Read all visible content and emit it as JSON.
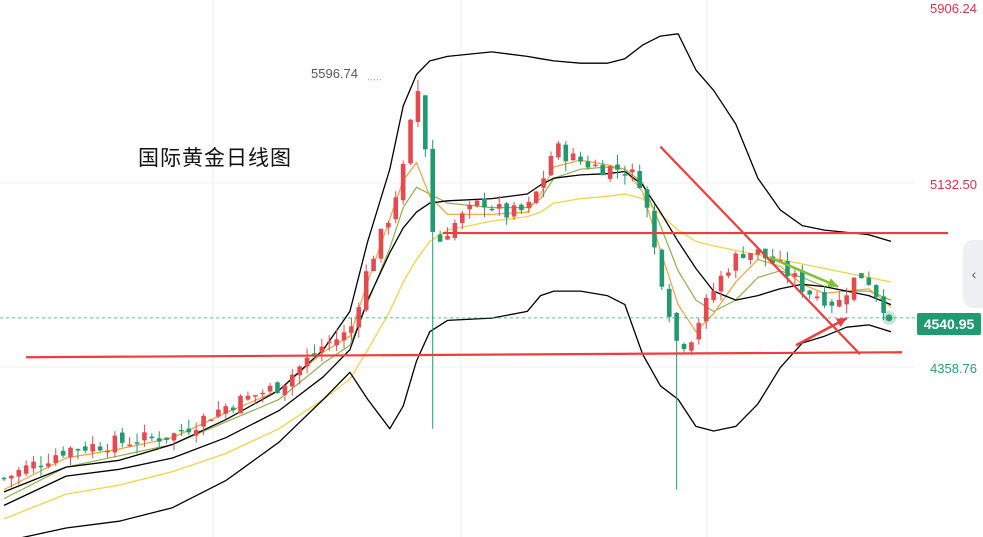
{
  "title": "国际黄金日线图",
  "colors": {
    "up": "#e44a4f",
    "down": "#1f9b6f",
    "band": "#000000",
    "ma_short": "#f2a23a",
    "ma_mid": "#8fb04a",
    "ma_long": "#f3d34a",
    "trend": "#f03c3c",
    "arrow_green": "#7fc133",
    "price_line": "#2b9c72"
  },
  "price_tag": "4540.95",
  "high_marker": "5596.74",
  "y_labels": [
    {
      "text": "5906.24",
      "value": 5906.24,
      "color": "red"
    },
    {
      "text": "5132.50",
      "value": 5132.5,
      "color": "red"
    },
    {
      "text": "4358.76",
      "value": 4358.76,
      "color": "green"
    }
  ],
  "side_button_icon": "chevron-left-icon",
  "chart_data": {
    "type": "candlestick",
    "title": "国际黄金日线图",
    "y_range": [
      3570,
      5950
    ],
    "current_price": 4540.95,
    "period_high": 5596.74,
    "grid": true,
    "candle_count": 120,
    "close_path": [
      [
        0,
        3830
      ],
      [
        14,
        3960
      ],
      [
        26,
        3990
      ],
      [
        38,
        4020
      ],
      [
        50,
        4150
      ],
      [
        62,
        4240
      ],
      [
        72,
        4420
      ],
      [
        78,
        4480
      ],
      [
        82,
        4760
      ],
      [
        87,
        5000
      ],
      [
        90,
        5200
      ],
      [
        92,
        5430
      ],
      [
        93,
        5596.74
      ],
      [
        95,
        5300
      ],
      [
        97,
        4850
      ],
      [
        100,
        4930
      ],
      [
        104,
        5000
      ],
      [
        108,
        5060
      ],
      [
        113,
        5000
      ],
      [
        118,
        5020
      ],
      [
        121,
        5130
      ],
      [
        124,
        5300
      ],
      [
        128,
        5250
      ],
      [
        134,
        5210
      ],
      [
        140,
        5200
      ],
      [
        144,
        5140
      ],
      [
        146,
        4900
      ],
      [
        149,
        4660
      ],
      [
        152,
        4410
      ],
      [
        155,
        4460
      ],
      [
        158,
        4590
      ],
      [
        161,
        4700
      ],
      [
        164,
        4790
      ],
      [
        167,
        4840
      ],
      [
        170,
        4830
      ],
      [
        174,
        4780
      ],
      [
        178,
        4720
      ],
      [
        181,
        4660
      ],
      [
        184,
        4640
      ],
      [
        188,
        4600
      ],
      [
        191,
        4700
      ],
      [
        194,
        4740
      ],
      [
        197,
        4640
      ],
      [
        200,
        4540.95
      ]
    ],
    "upper_band": [
      [
        0,
        3770
      ],
      [
        14,
        3880
      ],
      [
        26,
        3910
      ],
      [
        38,
        3980
      ],
      [
        50,
        4090
      ],
      [
        62,
        4220
      ],
      [
        72,
        4400
      ],
      [
        78,
        4570
      ],
      [
        82,
        4880
      ],
      [
        87,
        5200
      ],
      [
        90,
        5480
      ],
      [
        93,
        5620
      ],
      [
        96,
        5680
      ],
      [
        100,
        5700
      ],
      [
        110,
        5720
      ],
      [
        118,
        5700
      ],
      [
        121,
        5690
      ],
      [
        124,
        5680
      ],
      [
        130,
        5670
      ],
      [
        136,
        5670
      ],
      [
        140,
        5690
      ],
      [
        144,
        5750
      ],
      [
        148,
        5790
      ],
      [
        152,
        5800
      ],
      [
        156,
        5640
      ],
      [
        160,
        5550
      ],
      [
        165,
        5400
      ],
      [
        170,
        5160
      ],
      [
        175,
        5020
      ],
      [
        180,
        4950
      ],
      [
        185,
        4930
      ],
      [
        190,
        4920
      ],
      [
        195,
        4910
      ],
      [
        200,
        4880
      ]
    ],
    "middle_band": [
      [
        0,
        3710
      ],
      [
        14,
        3840
      ],
      [
        26,
        3870
      ],
      [
        38,
        3920
      ],
      [
        50,
        4010
      ],
      [
        62,
        4130
      ],
      [
        72,
        4280
      ],
      [
        78,
        4400
      ],
      [
        82,
        4620
      ],
      [
        87,
        4830
      ],
      [
        90,
        4940
      ],
      [
        93,
        5010
      ],
      [
        96,
        5050
      ],
      [
        100,
        5060
      ],
      [
        110,
        5070
      ],
      [
        118,
        5090
      ],
      [
        121,
        5130
      ],
      [
        124,
        5160
      ],
      [
        130,
        5175
      ],
      [
        136,
        5180
      ],
      [
        140,
        5190
      ],
      [
        144,
        5130
      ],
      [
        148,
        5010
      ],
      [
        152,
        4880
      ],
      [
        156,
        4760
      ],
      [
        160,
        4660
      ],
      [
        165,
        4620
      ],
      [
        170,
        4640
      ],
      [
        175,
        4670
      ],
      [
        180,
        4690
      ],
      [
        185,
        4680
      ],
      [
        190,
        4660
      ],
      [
        195,
        4640
      ],
      [
        200,
        4600
      ]
    ],
    "lower_band": [
      [
        0,
        3550
      ],
      [
        14,
        3610
      ],
      [
        26,
        3640
      ],
      [
        38,
        3700
      ],
      [
        50,
        3820
      ],
      [
        62,
        3990
      ],
      [
        72,
        4180
      ],
      [
        78,
        4300
      ],
      [
        82,
        4180
      ],
      [
        87,
        4050
      ],
      [
        90,
        4150
      ],
      [
        93,
        4350
      ],
      [
        96,
        4480
      ],
      [
        100,
        4530
      ],
      [
        110,
        4540
      ],
      [
        118,
        4570
      ],
      [
        121,
        4640
      ],
      [
        124,
        4660
      ],
      [
        130,
        4660
      ],
      [
        136,
        4640
      ],
      [
        140,
        4600
      ],
      [
        144,
        4380
      ],
      [
        148,
        4240
      ],
      [
        152,
        4180
      ],
      [
        156,
        4060
      ],
      [
        160,
        4040
      ],
      [
        165,
        4060
      ],
      [
        170,
        4160
      ],
      [
        175,
        4320
      ],
      [
        180,
        4430
      ],
      [
        185,
        4460
      ],
      [
        190,
        4500
      ],
      [
        195,
        4510
      ],
      [
        200,
        4480
      ]
    ],
    "ma_short": [
      [
        0,
        3780
      ],
      [
        14,
        3920
      ],
      [
        26,
        3960
      ],
      [
        38,
        4010
      ],
      [
        50,
        4120
      ],
      [
        62,
        4220
      ],
      [
        72,
        4390
      ],
      [
        78,
        4460
      ],
      [
        82,
        4700
      ],
      [
        87,
        4980
      ],
      [
        90,
        5150
      ],
      [
        93,
        5230
      ],
      [
        96,
        5080
      ],
      [
        100,
        5000
      ],
      [
        110,
        5000
      ],
      [
        118,
        5010
      ],
      [
        121,
        5090
      ],
      [
        124,
        5210
      ],
      [
        130,
        5240
      ],
      [
        136,
        5220
      ],
      [
        140,
        5200
      ],
      [
        144,
        5100
      ],
      [
        148,
        4840
      ],
      [
        152,
        4600
      ],
      [
        156,
        4480
      ],
      [
        160,
        4560
      ],
      [
        165,
        4700
      ],
      [
        170,
        4800
      ],
      [
        175,
        4770
      ],
      [
        180,
        4690
      ],
      [
        185,
        4650
      ],
      [
        190,
        4660
      ],
      [
        195,
        4670
      ],
      [
        200,
        4590
      ]
    ],
    "ma_mid": [
      [
        0,
        3740
      ],
      [
        14,
        3880
      ],
      [
        26,
        3930
      ],
      [
        38,
        3980
      ],
      [
        50,
        4080
      ],
      [
        62,
        4180
      ],
      [
        72,
        4340
      ],
      [
        78,
        4420
      ],
      [
        82,
        4610
      ],
      [
        87,
        4850
      ],
      [
        90,
        5030
      ],
      [
        93,
        5120
      ],
      [
        96,
        5090
      ],
      [
        100,
        5050
      ],
      [
        110,
        5030
      ],
      [
        118,
        5030
      ],
      [
        121,
        5070
      ],
      [
        124,
        5160
      ],
      [
        130,
        5200
      ],
      [
        136,
        5210
      ],
      [
        140,
        5200
      ],
      [
        144,
        5140
      ],
      [
        148,
        4950
      ],
      [
        152,
        4750
      ],
      [
        156,
        4620
      ],
      [
        160,
        4570
      ],
      [
        165,
        4620
      ],
      [
        170,
        4720
      ],
      [
        175,
        4750
      ],
      [
        180,
        4720
      ],
      [
        185,
        4680
      ],
      [
        190,
        4660
      ],
      [
        195,
        4660
      ],
      [
        200,
        4620
      ]
    ],
    "ma_long": [
      [
        0,
        3650
      ],
      [
        14,
        3760
      ],
      [
        26,
        3800
      ],
      [
        38,
        3860
      ],
      [
        50,
        3940
      ],
      [
        62,
        4050
      ],
      [
        72,
        4180
      ],
      [
        78,
        4270
      ],
      [
        82,
        4400
      ],
      [
        87,
        4570
      ],
      [
        90,
        4700
      ],
      [
        93,
        4800
      ],
      [
        96,
        4880
      ],
      [
        100,
        4930
      ],
      [
        110,
        4970
      ],
      [
        118,
        4990
      ],
      [
        121,
        5010
      ],
      [
        124,
        5050
      ],
      [
        130,
        5070
      ],
      [
        136,
        5080
      ],
      [
        140,
        5090
      ],
      [
        144,
        5070
      ],
      [
        148,
        5000
      ],
      [
        152,
        4930
      ],
      [
        156,
        4880
      ],
      [
        160,
        4860
      ],
      [
        165,
        4840
      ],
      [
        170,
        4820
      ],
      [
        175,
        4800
      ],
      [
        180,
        4780
      ],
      [
        185,
        4760
      ],
      [
        190,
        4740
      ],
      [
        195,
        4720
      ],
      [
        200,
        4700
      ]
    ],
    "horizontal_lines": [
      {
        "name": "resistance",
        "value": 4917
      },
      {
        "name": "support",
        "value": 4380
      }
    ],
    "trend_line": [
      [
        148,
        5300
      ],
      [
        184,
        4380
      ]
    ],
    "arrows": [
      {
        "name": "down-arrow",
        "color": "green",
        "from": [
          169,
          4810
        ],
        "to": [
          184,
          4680
        ]
      },
      {
        "name": "up-arrow",
        "color": "red",
        "from": [
          175,
          4420
        ],
        "to": [
          186,
          4540
        ]
      }
    ]
  }
}
